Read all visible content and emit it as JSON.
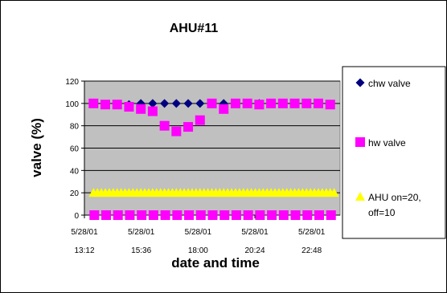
{
  "chart_data": {
    "type": "line",
    "title": "AHU#11",
    "xlabel": "date and time",
    "ylabel": "valve (%)",
    "ylim": [
      0,
      120
    ],
    "yticks": [
      "0",
      "20",
      "40",
      "60",
      "80",
      "100",
      "120"
    ],
    "xticks": [
      {
        "date": "5/28/01",
        "time": "13:12"
      },
      {
        "date": "5/28/01",
        "time": "15:36"
      },
      {
        "date": "5/28/01",
        "time": "18:00"
      },
      {
        "date": "5/28/01",
        "time": "20:24"
      },
      {
        "date": "5/28/01",
        "time": "22:48"
      }
    ],
    "x_start": "5/28/01 13:12",
    "x_end": "5/28/01 24:00",
    "grid": true,
    "plot_background": "#c0c0c0",
    "legend_position": "right",
    "series": [
      {
        "name": "chw valve",
        "marker": "diamond",
        "color": "#000080",
        "points": [
          {
            "time": "13:35",
            "upper": 100,
            "lower": 0
          },
          {
            "time": "14:05",
            "upper": 99,
            "lower": 0
          },
          {
            "time": "14:35",
            "upper": 99,
            "lower": 0
          },
          {
            "time": "15:05",
            "upper": 99,
            "lower": 0
          },
          {
            "time": "15:35",
            "upper": 100,
            "lower": 0
          },
          {
            "time": "16:05",
            "upper": 100,
            "lower": 0
          },
          {
            "time": "16:35",
            "upper": 100,
            "lower": 0
          },
          {
            "time": "17:05",
            "upper": 100,
            "lower": 0
          },
          {
            "time": "17:35",
            "upper": 100,
            "lower": 0
          },
          {
            "time": "18:05",
            "upper": 100,
            "lower": 0
          },
          {
            "time": "18:35",
            "upper": 100,
            "lower": 0
          },
          {
            "time": "19:05",
            "upper": 100,
            "lower": 0
          },
          {
            "time": "19:35",
            "upper": 100,
            "lower": 0
          },
          {
            "time": "20:05",
            "upper": 100,
            "lower": 0
          },
          {
            "time": "20:35",
            "upper": 100,
            "lower": 0
          },
          {
            "time": "21:05",
            "upper": 100,
            "lower": 0
          },
          {
            "time": "21:35",
            "upper": 100,
            "lower": 0
          },
          {
            "time": "22:05",
            "upper": 100,
            "lower": 0
          },
          {
            "time": "22:35",
            "upper": 100,
            "lower": 0
          },
          {
            "time": "23:05",
            "upper": 100,
            "lower": 0
          },
          {
            "time": "23:35",
            "upper": 99,
            "lower": 0
          }
        ]
      },
      {
        "name": "hw valve",
        "marker": "square",
        "color": "#ff00ff",
        "points": [
          {
            "time": "13:35",
            "upper": 100,
            "lower": 0
          },
          {
            "time": "14:05",
            "upper": 99,
            "lower": 0
          },
          {
            "time": "14:35",
            "upper": 99,
            "lower": 0
          },
          {
            "time": "15:05",
            "upper": 97,
            "lower": 0
          },
          {
            "time": "15:35",
            "upper": 95,
            "lower": 0
          },
          {
            "time": "16:05",
            "upper": 93,
            "lower": 0
          },
          {
            "time": "16:35",
            "upper": 80,
            "lower": 0
          },
          {
            "time": "17:05",
            "upper": 75,
            "lower": 0
          },
          {
            "time": "17:35",
            "upper": 79,
            "lower": 0
          },
          {
            "time": "18:05",
            "upper": 85,
            "lower": 0
          },
          {
            "time": "18:35",
            "upper": 100,
            "lower": 0
          },
          {
            "time": "19:05",
            "upper": 95,
            "lower": 0
          },
          {
            "time": "19:35",
            "upper": 100,
            "lower": 0
          },
          {
            "time": "20:05",
            "upper": 100,
            "lower": 0
          },
          {
            "time": "20:35",
            "upper": 99,
            "lower": 0
          },
          {
            "time": "21:05",
            "upper": 100,
            "lower": 0
          },
          {
            "time": "21:35",
            "upper": 100,
            "lower": 0
          },
          {
            "time": "22:05",
            "upper": 100,
            "lower": 0
          },
          {
            "time": "22:35",
            "upper": 100,
            "lower": 0
          },
          {
            "time": "23:05",
            "upper": 100,
            "lower": 0
          },
          {
            "time": "23:35",
            "upper": 99,
            "lower": 0
          }
        ]
      },
      {
        "name": "AHU on=20, off=10",
        "legend_lines": [
          "AHU on=20,",
          "off=10"
        ],
        "marker": "triangle",
        "color": "#ffff00",
        "value": 20,
        "start": "13:35",
        "end": "23:45",
        "step_minutes": 10
      }
    ]
  }
}
